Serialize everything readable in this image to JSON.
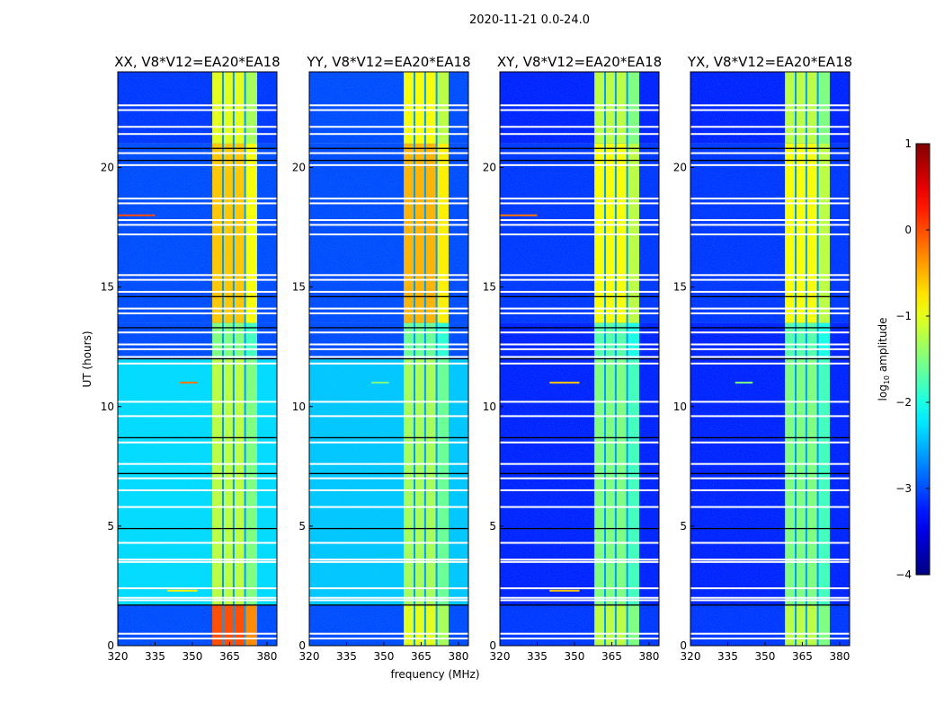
{
  "chart_data": {
    "type": "heatmap",
    "suptitle": "2020-11-21 0.0-24.0",
    "xlabel": "frequency (MHz)",
    "ylabel": "UT (hours)",
    "xlim": [
      320,
      384
    ],
    "ylim": [
      0,
      24
    ],
    "xticks": [
      320,
      335,
      350,
      365,
      380
    ],
    "yticks": [
      0,
      5,
      10,
      15,
      20
    ],
    "colormap": "jet",
    "colorbar": {
      "label": "log10 amplitude",
      "label_main": "log",
      "label_sub": "10",
      "label_rest": " amplitude",
      "range": [
        -4,
        1
      ],
      "ticks": [
        1,
        0,
        -1,
        -2,
        -3,
        -4
      ]
    },
    "rfi_band_mhz": [
      358,
      376
    ],
    "rfi_subcolumn_edges_mhz": [
      362.3,
      366.6,
      371.2
    ],
    "flag_lines_white_hours": [
      22.6,
      22.4,
      21.7,
      21.4,
      20.6,
      20.1,
      18.7,
      18.5,
      17.8,
      17.6,
      17.2,
      15.5,
      15.3,
      14.8,
      14.1,
      13.9,
      13.1,
      12.6,
      12.4,
      11.8,
      10.2,
      9.6,
      8.5,
      7.6,
      7.0,
      6.5,
      5.8,
      4.3,
      3.6,
      3.5,
      2.4,
      2.0,
      1.9,
      0.5,
      0.3
    ],
    "flag_lines_black_hours": [
      20.8,
      20.3,
      14.6,
      13.3,
      12.0,
      8.7,
      7.2,
      4.9,
      1.7
    ],
    "panels": [
      {
        "title": "XX, V8*V12=EA20*EA18",
        "segments": [
          {
            "t": [
              0,
              1.7
            ],
            "background": -3.0,
            "rfi": 0.0
          },
          {
            "t": [
              1.7,
              12
            ],
            "background": -2.3,
            "rfi": -1.2
          },
          {
            "t": [
              12,
              13.5
            ],
            "background": -3.0,
            "rfi": -1.5
          },
          {
            "t": [
              13.5,
              21
            ],
            "background": -3.0,
            "rfi": -0.6
          },
          {
            "t": [
              21,
              24
            ],
            "background": -3.1,
            "rfi": -1.0
          }
        ],
        "streaks": [
          {
            "t": 18.0,
            "f": [
              320,
              335
            ],
            "value": 0.0
          },
          {
            "t": 11.0,
            "f": [
              345,
              352
            ],
            "value": -0.2
          },
          {
            "t": 2.3,
            "f": [
              340,
              352
            ],
            "value": -0.8
          }
        ]
      },
      {
        "title": "YY, V8*V12=EA20*EA18",
        "segments": [
          {
            "t": [
              0,
              1.7
            ],
            "background": -3.0,
            "rfi": -1.0
          },
          {
            "t": [
              1.7,
              12
            ],
            "background": -2.4,
            "rfi": -1.3
          },
          {
            "t": [
              12,
              13.5
            ],
            "background": -3.0,
            "rfi": -1.6
          },
          {
            "t": [
              13.5,
              21
            ],
            "background": -3.0,
            "rfi": -0.5
          },
          {
            "t": [
              21,
              24
            ],
            "background": -3.0,
            "rfi": -0.9
          }
        ],
        "streaks": [
          {
            "t": 11.0,
            "f": [
              345,
              352
            ],
            "value": -1.5
          }
        ]
      },
      {
        "title": "XY, V8*V12=EA20*EA18",
        "segments": [
          {
            "t": [
              0,
              1.7
            ],
            "background": -3.1,
            "rfi": -1.2
          },
          {
            "t": [
              1.7,
              12
            ],
            "background": -3.2,
            "rfi": -1.5
          },
          {
            "t": [
              12,
              13.5
            ],
            "background": -3.2,
            "rfi": -1.7
          },
          {
            "t": [
              13.5,
              21
            ],
            "background": -3.1,
            "rfi": -0.9
          },
          {
            "t": [
              21,
              24
            ],
            "background": -3.2,
            "rfi": -1.2
          }
        ],
        "streaks": [
          {
            "t": 18.0,
            "f": [
              320,
              335
            ],
            "value": -0.2
          },
          {
            "t": 11.0,
            "f": [
              340,
              352
            ],
            "value": -0.6
          },
          {
            "t": 2.3,
            "f": [
              340,
              352
            ],
            "value": -0.6
          }
        ]
      },
      {
        "title": "YX, V8*V12=EA20*EA18",
        "segments": [
          {
            "t": [
              0,
              1.7
            ],
            "background": -3.1,
            "rfi": -1.2
          },
          {
            "t": [
              1.7,
              12
            ],
            "background": -3.2,
            "rfi": -1.5
          },
          {
            "t": [
              12,
              13.5
            ],
            "background": -3.2,
            "rfi": -1.7
          },
          {
            "t": [
              13.5,
              21
            ],
            "background": -3.1,
            "rfi": -0.9
          },
          {
            "t": [
              21,
              24
            ],
            "background": -3.2,
            "rfi": -1.2
          }
        ],
        "streaks": [
          {
            "t": 11.0,
            "f": [
              338,
              345
            ],
            "value": -1.5
          }
        ]
      }
    ]
  }
}
